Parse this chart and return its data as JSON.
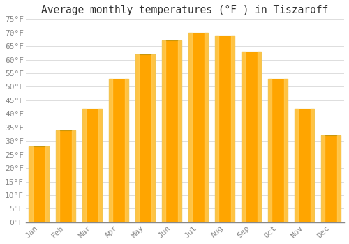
{
  "title": "Average monthly temperatures (°F ) in Tiszaroff",
  "months": [
    "Jan",
    "Feb",
    "Mar",
    "Apr",
    "May",
    "Jun",
    "Jul",
    "Aug",
    "Sep",
    "Oct",
    "Nov",
    "Dec"
  ],
  "values": [
    28,
    34,
    42,
    53,
    62,
    67,
    70,
    69,
    63,
    53,
    42,
    32
  ],
  "bar_color_center": "#FFA500",
  "bar_color_edge": "#F5C518",
  "bar_outline_color": "#B8860B",
  "background_color": "#FFFFFF",
  "grid_color": "#DDDDDD",
  "ylim": [
    0,
    75
  ],
  "yticks": [
    0,
    5,
    10,
    15,
    20,
    25,
    30,
    35,
    40,
    45,
    50,
    55,
    60,
    65,
    70,
    75
  ],
  "tick_label_color": "#888888",
  "title_color": "#333333",
  "title_fontsize": 10.5,
  "bar_width": 0.75
}
